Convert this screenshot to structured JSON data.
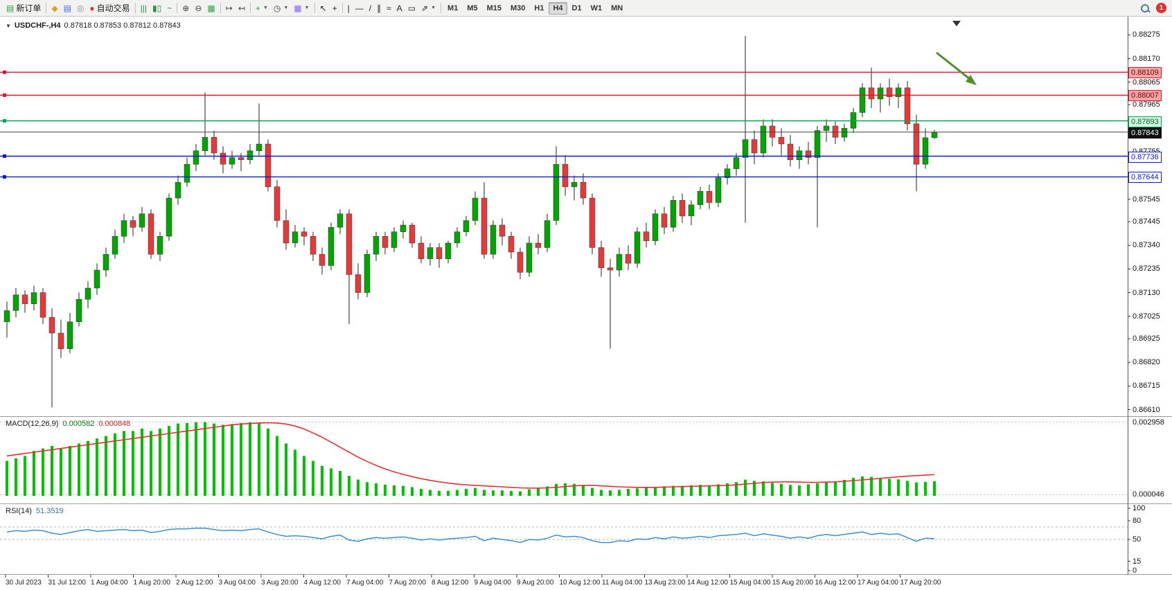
{
  "toolbar": {
    "new_order_label": "新订单",
    "autotrade_label": "自动交易",
    "badge_count": "1",
    "items": [
      {
        "name": "new-order-button",
        "glyph": "▤",
        "glyph_color": "#2f9e44",
        "label": "新订单",
        "interactable": true
      },
      {
        "name": "separator"
      },
      {
        "name": "market-watch-icon",
        "glyph": "◆",
        "glyph_color": "#d9a621",
        "interactable": true
      },
      {
        "name": "profiles-icon",
        "glyph": "▤",
        "glyph_color": "#4263eb",
        "interactable": true
      },
      {
        "name": "alerts-icon",
        "glyph": "◎",
        "glyph_color": "#868e96",
        "interactable": true
      },
      {
        "name": "autotrade-button",
        "glyph": "●",
        "glyph_color": "#e03131",
        "label": "自动交易",
        "interactable": true
      },
      {
        "name": "separator"
      },
      {
        "name": "bar-chart-type-icon",
        "glyph": "|||",
        "glyph_color": "#2b8a3e",
        "interactable": true
      },
      {
        "name": "candlestick-type-icon",
        "glyph": "▮▯",
        "glyph_color": "#2b8a3e",
        "interactable": true
      },
      {
        "name": "line-chart-type-icon",
        "glyph": "~",
        "glyph_color": "#2b8a3e",
        "interactable": true
      },
      {
        "name": "separator"
      },
      {
        "name": "zoom-in-icon",
        "glyph": "⊕",
        "glyph_color": "#444",
        "interactable": true
      },
      {
        "name": "zoom-out-icon",
        "glyph": "⊖",
        "glyph_color": "#444",
        "interactable": true
      },
      {
        "name": "tile-windows-icon",
        "glyph": "▦",
        "glyph_color": "#2f9e44",
        "interactable": true
      },
      {
        "name": "separator"
      },
      {
        "name": "auto-scroll-icon",
        "glyph": "↦",
        "glyph_color": "#444",
        "interactable": true
      },
      {
        "name": "chart-shift-icon",
        "glyph": "↤",
        "glyph_color": "#444",
        "interactable": true
      },
      {
        "name": "separator"
      },
      {
        "name": "indicators-button",
        "glyph": "+",
        "glyph_color": "#2f9e44",
        "caret": true,
        "interactable": true
      },
      {
        "name": "periods-button",
        "glyph": "◷",
        "glyph_color": "#444",
        "caret": true,
        "interactable": true
      },
      {
        "name": "templates-button",
        "glyph": "▦",
        "glyph_color": "#845ef7",
        "caret": true,
        "interactable": true
      },
      {
        "name": "separator"
      },
      {
        "name": "cursor-icon",
        "glyph": "↖",
        "glyph_color": "#222",
        "interactable": true
      },
      {
        "name": "crosshair-icon",
        "glyph": "+",
        "glyph_color": "#222",
        "interactable": true
      },
      {
        "name": "separator"
      },
      {
        "name": "vertical-line-icon",
        "glyph": "|",
        "glyph_color": "#222",
        "interactable": true
      },
      {
        "name": "horizontal-line-icon",
        "glyph": "—",
        "glyph_color": "#222",
        "interactable": true
      },
      {
        "name": "trendline-icon",
        "glyph": "/",
        "glyph_color": "#222",
        "interactable": true
      },
      {
        "name": "channel-icon",
        "glyph": "∥",
        "glyph_color": "#222",
        "interactable": true
      },
      {
        "name": "fibonacci-icon",
        "glyph": "≈",
        "glyph_color": "#222",
        "interactable": true
      },
      {
        "name": "text-icon",
        "glyph": "A",
        "glyph_color": "#222",
        "interactable": true
      },
      {
        "name": "label-icon",
        "glyph": "▭",
        "glyph_color": "#222",
        "interactable": true
      },
      {
        "name": "shapes-button",
        "glyph": "⇗",
        "glyph_color": "#222",
        "caret": true,
        "interactable": true
      },
      {
        "name": "separator"
      }
    ],
    "timeframes": [
      "M1",
      "M5",
      "M15",
      "M30",
      "H1",
      "H4",
      "D1",
      "W1",
      "MN"
    ],
    "active_timeframe": "H4"
  },
  "chart": {
    "collapse_glyph": "▼",
    "symbol_title": "USDCHF-,H4",
    "ohlc_text": "0.87818 0.87853 0.87812 0.87843",
    "colors": {
      "candle_up": "#02a502",
      "candle_down": "#e33a3a",
      "wick": "#222222",
      "arrow": "#4d8f2f",
      "axis_line": "#555555"
    },
    "price_axis": [
      "0.88275",
      "0.88170",
      "0.88065",
      "0.87965",
      "0.87860",
      "0.87755",
      "0.87650",
      "0.87545",
      "0.87445",
      "0.87340",
      "0.87235",
      "0.87130",
      "0.87025",
      "0.86925",
      "0.86820",
      "0.86715",
      "0.86610"
    ],
    "hlines": [
      {
        "price": 0.88109,
        "label": "0.88109",
        "color": "#e8112d",
        "tag_bg": "#f3a6a6",
        "tag_color": "#7a0000",
        "tag_border": "#e8112d"
      },
      {
        "price": 0.88007,
        "label": "0.88007",
        "color": "#e8112d",
        "tag_bg": "#f3a6a6",
        "tag_color": "#7a0000",
        "tag_border": "#e8112d"
      },
      {
        "price": 0.87893,
        "label": "0.87893",
        "color": "#00a651",
        "tag_bg": "#d2f5dd",
        "tag_color": "#006b2d",
        "tag_border": "#00a651"
      },
      {
        "price": 0.87736,
        "label": "0.87736",
        "color": "#0a18d8",
        "tag_bg": "#ffffff",
        "tag_color": "#0a18d8",
        "tag_border": "#0a18d8"
      },
      {
        "price": 0.87644,
        "label": "0.87644",
        "color": "#0a18d8",
        "tag_bg": "#ffffff",
        "tag_color": "#0a18d8",
        "tag_border": "#0a18d8"
      }
    ],
    "current_price": {
      "price": 0.87843,
      "label": "0.87843",
      "line_color": "#444444",
      "tag_bg": "#101010",
      "tag_color": "#ffffff"
    }
  },
  "chart_data": {
    "type": "candlestick",
    "symbol": "USDCHF",
    "timeframe": "H4",
    "ylim": [
      0.8659,
      0.8835
    ],
    "candles": [
      [
        0.87,
        0.8709,
        0.8693,
        0.8705
      ],
      [
        0.8705,
        0.8715,
        0.8702,
        0.8712
      ],
      [
        0.8712,
        0.8714,
        0.8704,
        0.8708
      ],
      [
        0.8708,
        0.8716,
        0.8705,
        0.8713
      ],
      [
        0.8713,
        0.8715,
        0.8699,
        0.8702
      ],
      [
        0.8702,
        0.8706,
        0.8662,
        0.8695
      ],
      [
        0.8695,
        0.8701,
        0.8684,
        0.8688
      ],
      [
        0.8688,
        0.8704,
        0.8686,
        0.87
      ],
      [
        0.87,
        0.8713,
        0.8698,
        0.871
      ],
      [
        0.871,
        0.8718,
        0.8706,
        0.8715
      ],
      [
        0.8715,
        0.8726,
        0.8712,
        0.8723
      ],
      [
        0.8723,
        0.8733,
        0.872,
        0.873
      ],
      [
        0.873,
        0.8741,
        0.8728,
        0.8738
      ],
      [
        0.8738,
        0.8748,
        0.8735,
        0.8745
      ],
      [
        0.8745,
        0.8747,
        0.8738,
        0.8742
      ],
      [
        0.8742,
        0.8751,
        0.874,
        0.8748
      ],
      [
        0.8748,
        0.875,
        0.8728,
        0.873
      ],
      [
        0.873,
        0.874,
        0.8727,
        0.8738
      ],
      [
        0.8738,
        0.8757,
        0.8736,
        0.8755
      ],
      [
        0.8755,
        0.8765,
        0.8752,
        0.8762
      ],
      [
        0.8762,
        0.8773,
        0.876,
        0.877
      ],
      [
        0.877,
        0.8779,
        0.8767,
        0.8776
      ],
      [
        0.8776,
        0.8802,
        0.8774,
        0.8782
      ],
      [
        0.8782,
        0.8785,
        0.8772,
        0.8775
      ],
      [
        0.8775,
        0.8778,
        0.8766,
        0.877
      ],
      [
        0.877,
        0.8776,
        0.8768,
        0.8773
      ],
      [
        0.8773,
        0.8775,
        0.8767,
        0.8772
      ],
      [
        0.8772,
        0.8779,
        0.877,
        0.8776
      ],
      [
        0.8776,
        0.8797,
        0.8774,
        0.8779
      ],
      [
        0.8779,
        0.8781,
        0.8758,
        0.876
      ],
      [
        0.876,
        0.8763,
        0.8742,
        0.8745
      ],
      [
        0.8745,
        0.875,
        0.8732,
        0.8735
      ],
      [
        0.8735,
        0.8743,
        0.8733,
        0.874
      ],
      [
        0.874,
        0.8742,
        0.8734,
        0.8738
      ],
      [
        0.8738,
        0.874,
        0.8727,
        0.873
      ],
      [
        0.873,
        0.8733,
        0.8721,
        0.8725
      ],
      [
        0.8725,
        0.8744,
        0.8723,
        0.8742
      ],
      [
        0.8742,
        0.875,
        0.8739,
        0.8748
      ],
      [
        0.8748,
        0.875,
        0.8699,
        0.8721
      ],
      [
        0.8721,
        0.8726,
        0.871,
        0.8713
      ],
      [
        0.8713,
        0.8732,
        0.8711,
        0.873
      ],
      [
        0.873,
        0.874,
        0.8727,
        0.8738
      ],
      [
        0.8738,
        0.874,
        0.873,
        0.8733
      ],
      [
        0.8733,
        0.8742,
        0.8731,
        0.874
      ],
      [
        0.874,
        0.8745,
        0.8737,
        0.8743
      ],
      [
        0.8743,
        0.8744,
        0.8733,
        0.8735
      ],
      [
        0.8735,
        0.8738,
        0.8726,
        0.8728
      ],
      [
        0.8728,
        0.8735,
        0.8725,
        0.8733
      ],
      [
        0.8733,
        0.8735,
        0.8724,
        0.8728
      ],
      [
        0.8728,
        0.8736,
        0.8726,
        0.8735
      ],
      [
        0.8735,
        0.8742,
        0.8733,
        0.874
      ],
      [
        0.874,
        0.8747,
        0.8738,
        0.8745
      ],
      [
        0.8745,
        0.8758,
        0.8743,
        0.8755
      ],
      [
        0.8755,
        0.8762,
        0.8728,
        0.873
      ],
      [
        0.873,
        0.8745,
        0.8728,
        0.8743
      ],
      [
        0.8743,
        0.8746,
        0.8734,
        0.8738
      ],
      [
        0.8738,
        0.874,
        0.8728,
        0.8731
      ],
      [
        0.8731,
        0.8733,
        0.8719,
        0.8722
      ],
      [
        0.8722,
        0.8738,
        0.872,
        0.8735
      ],
      [
        0.8735,
        0.8739,
        0.873,
        0.8733
      ],
      [
        0.8733,
        0.8748,
        0.8731,
        0.8745
      ],
      [
        0.8745,
        0.8778,
        0.8743,
        0.877
      ],
      [
        0.877,
        0.8774,
        0.8756,
        0.876
      ],
      [
        0.876,
        0.8765,
        0.8754,
        0.8762
      ],
      [
        0.8762,
        0.8766,
        0.8752,
        0.8755
      ],
      [
        0.8755,
        0.8757,
        0.873,
        0.8733
      ],
      [
        0.8733,
        0.8736,
        0.872,
        0.8724
      ],
      [
        0.8724,
        0.8728,
        0.8688,
        0.8723
      ],
      [
        0.8723,
        0.8733,
        0.872,
        0.873
      ],
      [
        0.873,
        0.8734,
        0.8723,
        0.8726
      ],
      [
        0.8726,
        0.8742,
        0.8724,
        0.874
      ],
      [
        0.874,
        0.8744,
        0.8733,
        0.8736
      ],
      [
        0.8736,
        0.875,
        0.8734,
        0.8748
      ],
      [
        0.8748,
        0.8751,
        0.8739,
        0.8742
      ],
      [
        0.8742,
        0.8756,
        0.874,
        0.8754
      ],
      [
        0.8754,
        0.8757,
        0.8744,
        0.8747
      ],
      [
        0.8747,
        0.8754,
        0.8743,
        0.8752
      ],
      [
        0.8752,
        0.876,
        0.875,
        0.8758
      ],
      [
        0.8758,
        0.8761,
        0.875,
        0.8753
      ],
      [
        0.8753,
        0.8766,
        0.8751,
        0.8764
      ],
      [
        0.8764,
        0.877,
        0.8761,
        0.8768
      ],
      [
        0.8768,
        0.8775,
        0.8765,
        0.8773
      ],
      [
        0.8773,
        0.8827,
        0.8744,
        0.8781
      ],
      [
        0.8781,
        0.8785,
        0.877,
        0.8775
      ],
      [
        0.8775,
        0.879,
        0.8773,
        0.8787
      ],
      [
        0.8787,
        0.879,
        0.8778,
        0.8782
      ],
      [
        0.8782,
        0.8786,
        0.8774,
        0.8779
      ],
      [
        0.8779,
        0.8783,
        0.8769,
        0.8772
      ],
      [
        0.8772,
        0.8778,
        0.8768,
        0.8776
      ],
      [
        0.8776,
        0.878,
        0.877,
        0.8773
      ],
      [
        0.8773,
        0.8787,
        0.8742,
        0.8785
      ],
      [
        0.8785,
        0.879,
        0.878,
        0.8787
      ],
      [
        0.8787,
        0.8789,
        0.8779,
        0.8782
      ],
      [
        0.8782,
        0.8788,
        0.878,
        0.8786
      ],
      [
        0.8786,
        0.8795,
        0.8784,
        0.8793
      ],
      [
        0.8793,
        0.8806,
        0.8791,
        0.8804
      ],
      [
        0.8804,
        0.8813,
        0.8795,
        0.8799
      ],
      [
        0.8799,
        0.8806,
        0.8793,
        0.8804
      ],
      [
        0.8804,
        0.8808,
        0.8796,
        0.88
      ],
      [
        0.88,
        0.8806,
        0.8795,
        0.8804
      ],
      [
        0.8804,
        0.8807,
        0.8785,
        0.8788
      ],
      [
        0.8788,
        0.8792,
        0.8758,
        0.877
      ],
      [
        0.877,
        0.8786,
        0.8768,
        0.87818
      ],
      [
        0.87818,
        0.87853,
        0.87812,
        0.87843
      ]
    ]
  },
  "macd": {
    "title": "MACD(12,26,9)",
    "value_main": "0.000582",
    "value_signal": "0.000848",
    "axis": [
      "0.002958",
      "0.000046"
    ],
    "bar_color": "#00c300",
    "signal_color": "#e03131",
    "hist": [
      0.0014,
      0.0015,
      0.0016,
      0.0018,
      0.0019,
      0.002,
      0.0019,
      0.002,
      0.0021,
      0.0022,
      0.0023,
      0.0024,
      0.0025,
      0.0026,
      0.0026,
      0.0027,
      0.0026,
      0.0027,
      0.0028,
      0.0029,
      0.00292,
      0.00295,
      0.00296,
      0.0029,
      0.00285,
      0.00288,
      0.00292,
      0.00295,
      0.00294,
      0.0027,
      0.0024,
      0.0021,
      0.00185,
      0.0016,
      0.0014,
      0.0012,
      0.0011,
      0.001,
      0.0008,
      0.00065,
      0.00055,
      0.0005,
      0.00045,
      0.00042,
      0.0004,
      0.00035,
      0.00028,
      0.00024,
      0.0002,
      0.0002,
      0.00024,
      0.00028,
      0.00032,
      0.00024,
      0.00022,
      0.00022,
      0.0002,
      0.00018,
      0.00026,
      0.0003,
      0.00038,
      0.00048,
      0.0005,
      0.00048,
      0.00042,
      0.00032,
      0.00024,
      0.00022,
      0.00024,
      0.00028,
      0.0003,
      0.00032,
      0.00036,
      0.00038,
      0.0004,
      0.0004,
      0.00042,
      0.00044,
      0.00042,
      0.00046,
      0.0005,
      0.00055,
      0.00065,
      0.0006,
      0.00058,
      0.00052,
      0.00048,
      0.00044,
      0.00042,
      0.00046,
      0.0005,
      0.00056,
      0.00058,
      0.00064,
      0.00072,
      0.00078,
      0.00076,
      0.0007,
      0.00068,
      0.00066,
      0.0006,
      0.00054,
      0.00056,
      0.000582
    ],
    "signal": [
      0.0016,
      0.00165,
      0.0017,
      0.00175,
      0.0018,
      0.00185,
      0.0019,
      0.00195,
      0.002,
      0.00205,
      0.0021,
      0.00215,
      0.0022,
      0.00225,
      0.0023,
      0.00235,
      0.0024,
      0.00245,
      0.0025,
      0.00255,
      0.0026,
      0.00265,
      0.0027,
      0.00275,
      0.0028,
      0.00285,
      0.00288,
      0.0029,
      0.00292,
      0.00293,
      0.00292,
      0.00288,
      0.0028,
      0.00268,
      0.00252,
      0.00235,
      0.00215,
      0.00195,
      0.00175,
      0.00155,
      0.00138,
      0.00122,
      0.00108,
      0.00096,
      0.00086,
      0.00077,
      0.00069,
      0.00062,
      0.00056,
      0.00051,
      0.00047,
      0.00044,
      0.00042,
      0.0004,
      0.00038,
      0.00036,
      0.00034,
      0.00032,
      0.00031,
      0.00031,
      0.00032,
      0.00034,
      0.00037,
      0.0004,
      0.00042,
      0.00042,
      0.0004,
      0.00038,
      0.00036,
      0.00035,
      0.00034,
      0.00034,
      0.00034,
      0.00035,
      0.00036,
      0.00037,
      0.00038,
      0.00039,
      0.0004,
      0.00041,
      0.00042,
      0.00044,
      0.00047,
      0.0005,
      0.00053,
      0.00055,
      0.00056,
      0.00056,
      0.00055,
      0.00054,
      0.00054,
      0.00055,
      0.00056,
      0.00058,
      0.00061,
      0.00064,
      0.00067,
      0.0007,
      0.00073,
      0.00076,
      0.00079,
      0.00081,
      0.00083,
      0.000848
    ]
  },
  "rsi": {
    "title": "RSI(14)",
    "value": "51.3519",
    "axis": [
      "100",
      "80",
      "50",
      "15",
      "0"
    ],
    "line_color": "#3b8fd4",
    "levels": [
      70,
      50
    ],
    "values": [
      62,
      64,
      63,
      65,
      64,
      60,
      58,
      61,
      64,
      66,
      63,
      64,
      65,
      66,
      64,
      65,
      61,
      63,
      66,
      67,
      67,
      68,
      68,
      66,
      64,
      65,
      64,
      66,
      67,
      62,
      58,
      55,
      56,
      55,
      53,
      51,
      55,
      57,
      49,
      47,
      51,
      53,
      52,
      53,
      54,
      52,
      49,
      51,
      49,
      51,
      52,
      53,
      55,
      48,
      52,
      50,
      48,
      45,
      50,
      49,
      52,
      57,
      54,
      55,
      53,
      48,
      45,
      45,
      48,
      47,
      51,
      50,
      53,
      51,
      54,
      52,
      53,
      55,
      53,
      56,
      57,
      58,
      60,
      56,
      59,
      57,
      55,
      52,
      54,
      52,
      56,
      58,
      56,
      58,
      60,
      62,
      58,
      60,
      58,
      59,
      53,
      47,
      52,
      51.35
    ]
  },
  "time_axis": [
    "30 Jul 2023",
    "31 Jul 12:00",
    "1 Aug 04:00",
    "1 Aug 20:00",
    "2 Aug 12:00",
    "3 Aug 04:00",
    "3 Aug 20:00",
    "4 Aug 12:00",
    "7 Aug 04:00",
    "7 Aug 20:00",
    "8 Aug 12:00",
    "9 Aug 04:00",
    "9 Aug 20:00",
    "10 Aug 12:00",
    "11 Aug 04:00",
    "13 Aug 23:00",
    "14 Aug 12:00",
    "15 Aug 04:00",
    "15 Aug 20:00",
    "16 Aug 12:00",
    "17 Aug 04:00",
    "17 Aug 20:00"
  ]
}
